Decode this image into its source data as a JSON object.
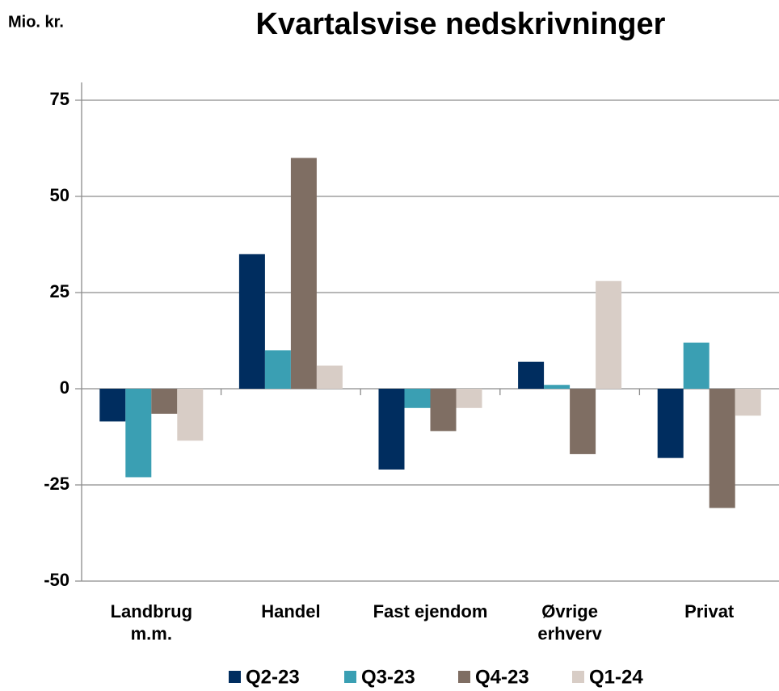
{
  "chart_data": {
    "type": "bar",
    "title": "Kvartalsvise nedskrivninger",
    "y_label": "Mio. kr.",
    "categories": [
      "Landbrug\nm.m.",
      "Handel",
      "Fast ejendom",
      "Øvrige\nerhverv",
      "Privat"
    ],
    "series": [
      {
        "name": "Q2-23",
        "color": "#002d5f",
        "values": [
          -8.5,
          35,
          -21,
          7,
          -18
        ]
      },
      {
        "name": "Q3-23",
        "color": "#3a9fb3",
        "values": [
          -23,
          10,
          -5,
          1,
          12
        ]
      },
      {
        "name": "Q4-23",
        "color": "#7f6e63",
        "values": [
          -6.5,
          60,
          -11,
          -17,
          -31
        ]
      },
      {
        "name": "Q1-24",
        "color": "#d8cdc6",
        "values": [
          -13.5,
          6,
          -5,
          28,
          -7
        ]
      }
    ],
    "ylim": [
      -50,
      75
    ],
    "yticks": [
      -50,
      -25,
      0,
      25,
      50,
      75
    ],
    "grid": true,
    "legend": "bottom"
  }
}
